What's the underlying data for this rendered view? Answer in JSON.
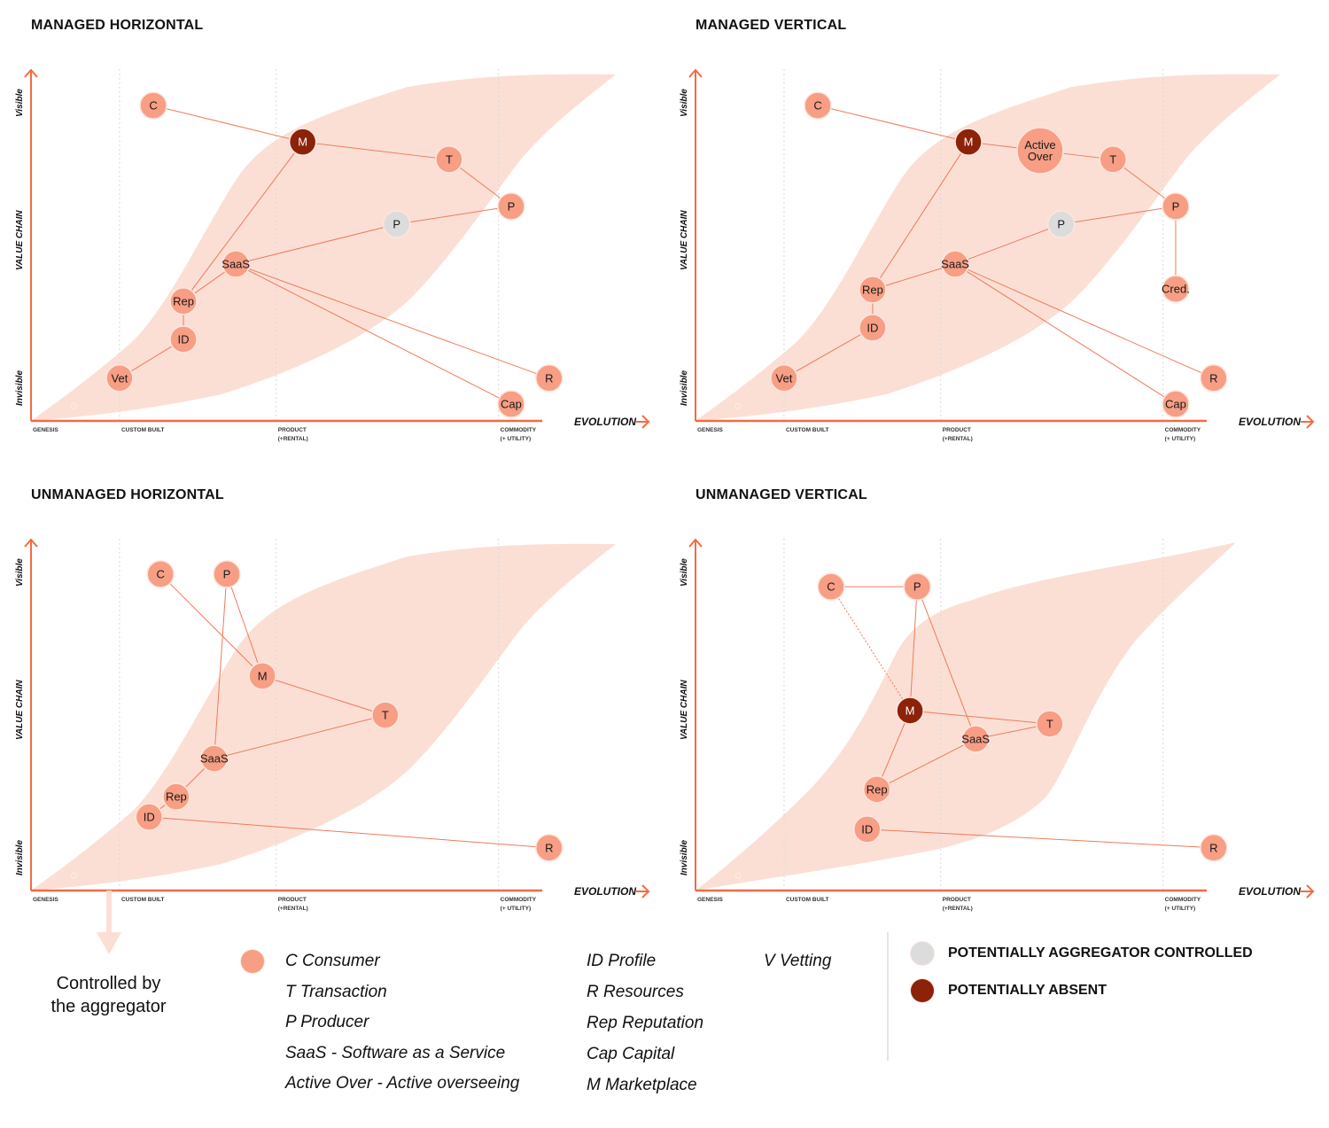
{
  "colors": {
    "accent": "#f26b43",
    "node": "#f79e84",
    "node_stroke": "#fde6dd",
    "absent": "#8c2208",
    "aggregator": "#dcdcdc",
    "band": "#fbdfd5",
    "link": "#f07a5a",
    "grid": "#d9d9d9"
  },
  "axis": {
    "evolution_label": "EVOLUTION",
    "value_chain_label": "VALUE CHAIN",
    "visible_label": "Visible",
    "invisible_label": "Invisible",
    "stages": [
      {
        "line1": "GENESIS",
        "line2": "",
        "at": 0.0
      },
      {
        "line1": "CUSTOM BUILT",
        "line2": "",
        "at": 0.147
      },
      {
        "line1": "PRODUCT",
        "line2": "(+RENTAL)",
        "at": 0.407
      },
      {
        "line1": "COMMODITY",
        "line2": "(+ UTILITY)",
        "at": 0.776
      }
    ]
  },
  "panels": [
    {
      "id": "managed-horizontal",
      "title": "MANAGED HORIZONTAL",
      "band": "wide",
      "nodes": [
        {
          "id": "C",
          "label": "C",
          "status": "normal",
          "evolution": 0.203,
          "visibility": 0.901
        },
        {
          "id": "M",
          "label": "M",
          "status": "absent",
          "evolution": 0.451,
          "visibility": 0.797
        },
        {
          "id": "T",
          "label": "T",
          "status": "normal",
          "evolution": 0.694,
          "visibility": 0.747
        },
        {
          "id": "P1",
          "label": "P",
          "status": "normal",
          "evolution": 0.797,
          "visibility": 0.613
        },
        {
          "id": "P2",
          "label": "P",
          "status": "aggregator",
          "evolution": 0.607,
          "visibility": 0.562
        },
        {
          "id": "SaaS",
          "label": "SaaS",
          "status": "normal",
          "evolution": 0.34,
          "visibility": 0.448
        },
        {
          "id": "Rep",
          "label": "Rep",
          "status": "normal",
          "evolution": 0.253,
          "visibility": 0.342
        },
        {
          "id": "ID",
          "label": "ID",
          "status": "normal",
          "evolution": 0.253,
          "visibility": 0.233
        },
        {
          "id": "Vet",
          "label": "Vet",
          "status": "normal",
          "evolution": 0.147,
          "visibility": 0.122
        },
        {
          "id": "R",
          "label": "R",
          "status": "normal",
          "evolution": 0.86,
          "visibility": 0.122
        },
        {
          "id": "Cap",
          "label": "Cap",
          "status": "normal",
          "evolution": 0.797,
          "visibility": 0.048
        }
      ],
      "links": [
        {
          "from": "C",
          "to": "M"
        },
        {
          "from": "M",
          "to": "T"
        },
        {
          "from": "T",
          "to": "P1"
        },
        {
          "from": "P1",
          "to": "P2"
        },
        {
          "from": "P2",
          "to": "SaaS"
        },
        {
          "from": "M",
          "to": "Rep"
        },
        {
          "from": "SaaS",
          "to": "Rep"
        },
        {
          "from": "Rep",
          "to": "ID"
        },
        {
          "from": "ID",
          "to": "Vet"
        },
        {
          "from": "SaaS",
          "to": "R"
        },
        {
          "from": "SaaS",
          "to": "Cap"
        }
      ]
    },
    {
      "id": "managed-vertical",
      "title": "MANAGED VERTICAL",
      "band": "wide",
      "nodes": [
        {
          "id": "C",
          "label": "C",
          "status": "normal",
          "evolution": 0.203,
          "visibility": 0.901
        },
        {
          "id": "M",
          "label": "M",
          "status": "absent",
          "evolution": 0.453,
          "visibility": 0.797
        },
        {
          "id": "AO",
          "label": "Active|Over",
          "status": "normal",
          "size": "large",
          "evolution": 0.572,
          "visibility": 0.772
        },
        {
          "id": "T",
          "label": "T",
          "status": "normal",
          "evolution": 0.693,
          "visibility": 0.747
        },
        {
          "id": "P1",
          "label": "P",
          "status": "normal",
          "evolution": 0.797,
          "visibility": 0.613
        },
        {
          "id": "P2",
          "label": "P",
          "status": "aggregator",
          "evolution": 0.607,
          "visibility": 0.562
        },
        {
          "id": "SaaS",
          "label": "SaaS",
          "status": "normal",
          "evolution": 0.431,
          "visibility": 0.448
        },
        {
          "id": "Rep",
          "label": "Rep",
          "status": "normal",
          "evolution": 0.294,
          "visibility": 0.375
        },
        {
          "id": "ID",
          "label": "ID",
          "status": "normal",
          "evolution": 0.294,
          "visibility": 0.266
        },
        {
          "id": "Vet",
          "label": "Vet",
          "status": "normal",
          "evolution": 0.147,
          "visibility": 0.122
        },
        {
          "id": "Cred",
          "label": "Cred.",
          "status": "normal",
          "evolution": 0.797,
          "visibility": 0.377
        },
        {
          "id": "R",
          "label": "R",
          "status": "normal",
          "evolution": 0.86,
          "visibility": 0.122
        },
        {
          "id": "Cap",
          "label": "Cap",
          "status": "normal",
          "evolution": 0.797,
          "visibility": 0.048
        }
      ],
      "links": [
        {
          "from": "C",
          "to": "M"
        },
        {
          "from": "M",
          "to": "AO"
        },
        {
          "from": "AO",
          "to": "T"
        },
        {
          "from": "T",
          "to": "P1"
        },
        {
          "from": "P1",
          "to": "Cred"
        },
        {
          "from": "P1",
          "to": "P2"
        },
        {
          "from": "P2",
          "to": "SaaS"
        },
        {
          "from": "M",
          "to": "Rep"
        },
        {
          "from": "SaaS",
          "to": "Rep"
        },
        {
          "from": "Rep",
          "to": "ID"
        },
        {
          "from": "ID",
          "to": "Vet"
        },
        {
          "from": "SaaS",
          "to": "R"
        },
        {
          "from": "SaaS",
          "to": "Cap"
        }
      ]
    },
    {
      "id": "unmanaged-horizontal",
      "title": "UNMANAGED HORIZONTAL",
      "band": "wide",
      "nodes": [
        {
          "id": "C",
          "label": "C",
          "status": "normal",
          "evolution": 0.215,
          "visibility": 0.904
        },
        {
          "id": "P",
          "label": "P",
          "status": "normal",
          "evolution": 0.325,
          "visibility": 0.904
        },
        {
          "id": "M",
          "label": "M",
          "status": "normal",
          "evolution": 0.384,
          "visibility": 0.613
        },
        {
          "id": "T",
          "label": "T",
          "status": "normal",
          "evolution": 0.588,
          "visibility": 0.501
        },
        {
          "id": "SaaS",
          "label": "SaaS",
          "status": "normal",
          "evolution": 0.304,
          "visibility": 0.377
        },
        {
          "id": "Rep",
          "label": "Rep",
          "status": "normal",
          "evolution": 0.241,
          "visibility": 0.268
        },
        {
          "id": "ID",
          "label": "ID",
          "status": "normal",
          "evolution": 0.196,
          "visibility": 0.21
        },
        {
          "id": "R",
          "label": "R",
          "status": "normal",
          "evolution": 0.86,
          "visibility": 0.122
        }
      ],
      "links": [
        {
          "from": "C",
          "to": "M"
        },
        {
          "from": "P",
          "to": "M"
        },
        {
          "from": "P",
          "to": "SaaS"
        },
        {
          "from": "M",
          "to": "T"
        },
        {
          "from": "T",
          "to": "SaaS"
        },
        {
          "from": "SaaS",
          "to": "Rep"
        },
        {
          "from": "Rep",
          "to": "ID"
        },
        {
          "from": "ID",
          "to": "R"
        }
      ]
    },
    {
      "id": "unmanaged-vertical",
      "title": "UNMANAGED VERTICAL",
      "band": "narrow",
      "nodes": [
        {
          "id": "C",
          "label": "C",
          "status": "normal",
          "evolution": 0.225,
          "visibility": 0.868
        },
        {
          "id": "P",
          "label": "P",
          "status": "normal",
          "evolution": 0.368,
          "visibility": 0.868
        },
        {
          "id": "M",
          "label": "M",
          "status": "absent",
          "evolution": 0.356,
          "visibility": 0.514
        },
        {
          "id": "T",
          "label": "T",
          "status": "normal",
          "evolution": 0.588,
          "visibility": 0.476
        },
        {
          "id": "SaaS",
          "label": "SaaS",
          "status": "normal",
          "evolution": 0.465,
          "visibility": 0.433
        },
        {
          "id": "Rep",
          "label": "Rep",
          "status": "normal",
          "evolution": 0.301,
          "visibility": 0.289
        },
        {
          "id": "ID",
          "label": "ID",
          "status": "normal",
          "evolution": 0.285,
          "visibility": 0.175
        },
        {
          "id": "R",
          "label": "R",
          "status": "normal",
          "evolution": 0.86,
          "visibility": 0.122
        }
      ],
      "links": [
        {
          "from": "C",
          "to": "P"
        },
        {
          "from": "C",
          "to": "M",
          "dashed": true
        },
        {
          "from": "P",
          "to": "M"
        },
        {
          "from": "P",
          "to": "SaaS"
        },
        {
          "from": "M",
          "to": "T"
        },
        {
          "from": "SaaS",
          "to": "T"
        },
        {
          "from": "M",
          "to": "Rep"
        },
        {
          "from": "Rep",
          "to": "SaaS"
        },
        {
          "from": "ID",
          "to": "R"
        }
      ]
    }
  ],
  "aggregator_note": {
    "line1": "Controlled by",
    "line2": "the aggregator"
  },
  "legend": {
    "column1": [
      "C Consumer",
      "T Transaction",
      "P Producer",
      "SaaS - Software as a Service",
      "Active Over - Active overseeing"
    ],
    "column2": [
      "ID Profile",
      "R Resources",
      "Rep Reputation",
      "Cap Capital",
      "M Marketplace"
    ],
    "column3": [
      "V Vetting"
    ],
    "status": [
      {
        "key": "aggregator",
        "label": "POTENTIALLY AGGREGATOR CONTROLLED"
      },
      {
        "key": "absent",
        "label": "POTENTIALLY ABSENT"
      }
    ]
  }
}
